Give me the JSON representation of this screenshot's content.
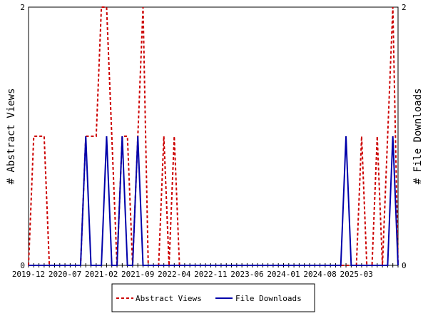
{
  "chart_data": {
    "type": "line",
    "ylabel_left": "# Abstract Views",
    "ylabel_right": "# File Downloads",
    "ylim": [
      0,
      2
    ],
    "x_tick_labels": [
      "2019-12",
      "2020-07",
      "2021-02",
      "2021-09",
      "2022-04",
      "2022-11",
      "2023-06",
      "2024-01",
      "2024-08",
      "2025-03"
    ],
    "x_start": "2019-12",
    "legend_position": "bottom",
    "series": [
      {
        "name": "Abstract Views",
        "color": "#cc0000",
        "style": "dashed",
        "values": [
          0,
          1,
          1,
          1,
          0,
          0,
          0,
          0,
          0,
          0,
          0,
          1,
          1,
          1,
          2,
          2,
          1,
          0,
          1,
          1,
          0,
          1,
          2,
          0,
          0,
          0,
          1,
          0,
          1,
          0,
          0,
          0,
          0,
          0,
          0,
          0,
          0,
          0,
          0,
          0,
          0,
          0,
          0,
          0,
          0,
          0,
          0,
          0,
          0,
          0,
          0,
          0,
          0,
          0,
          0,
          0,
          0,
          0,
          0,
          0,
          0,
          0,
          0,
          0,
          1,
          0,
          0,
          1,
          0,
          1,
          2,
          0
        ]
      },
      {
        "name": "File Downloads",
        "color": "#0000aa",
        "style": "solid",
        "values": [
          0,
          0,
          0,
          0,
          0,
          0,
          0,
          0,
          0,
          0,
          0,
          1,
          0,
          0,
          0,
          1,
          0,
          0,
          1,
          0,
          0,
          1,
          0,
          0,
          0,
          0,
          0,
          0,
          0,
          0,
          0,
          0,
          0,
          0,
          0,
          0,
          0,
          0,
          0,
          0,
          0,
          0,
          0,
          0,
          0,
          0,
          0,
          0,
          0,
          0,
          0,
          0,
          0,
          0,
          0,
          0,
          0,
          0,
          0,
          0,
          0,
          1,
          0,
          0,
          0,
          0,
          0,
          0,
          0,
          0,
          1,
          0
        ]
      }
    ]
  }
}
